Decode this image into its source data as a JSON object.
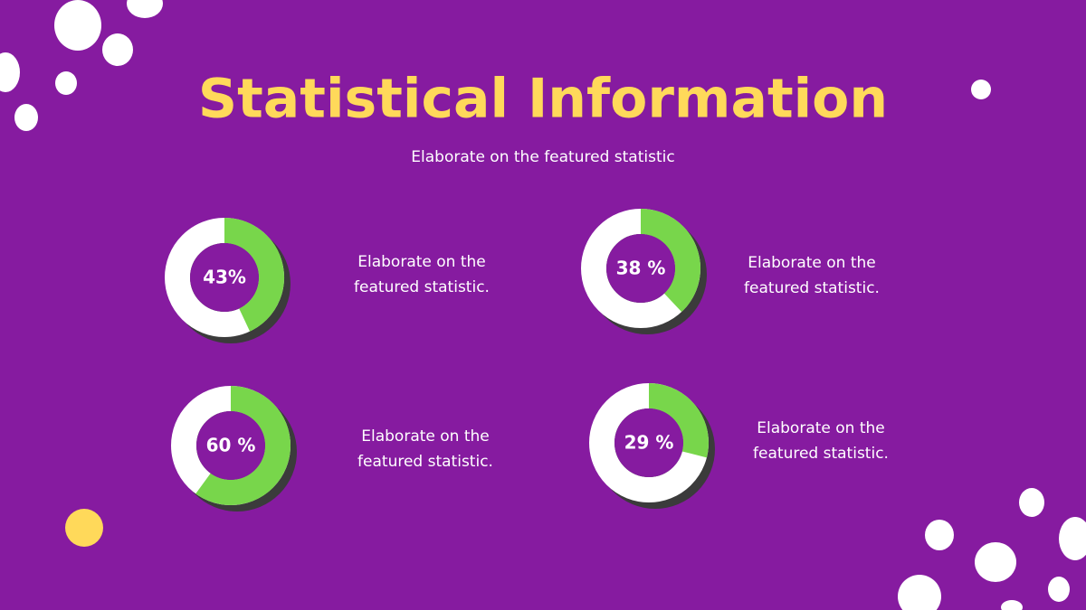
{
  "header": {
    "title": "Statistical Information",
    "subtitle": "Elaborate on the featured statistic"
  },
  "stats": [
    {
      "value": 43,
      "label": "43%",
      "text": [
        "Elaborate on the",
        "featured statistic."
      ]
    },
    {
      "value": 38,
      "label": "38 %",
      "text": [
        "Elaborate on the",
        "featured statistic."
      ]
    },
    {
      "value": 60,
      "label": "60 %",
      "text": [
        "Elaborate on the",
        "featured statistic."
      ]
    },
    {
      "value": 29,
      "label": "29 %",
      "text": [
        "Elaborate on the",
        "featured statistic."
      ]
    }
  ]
}
